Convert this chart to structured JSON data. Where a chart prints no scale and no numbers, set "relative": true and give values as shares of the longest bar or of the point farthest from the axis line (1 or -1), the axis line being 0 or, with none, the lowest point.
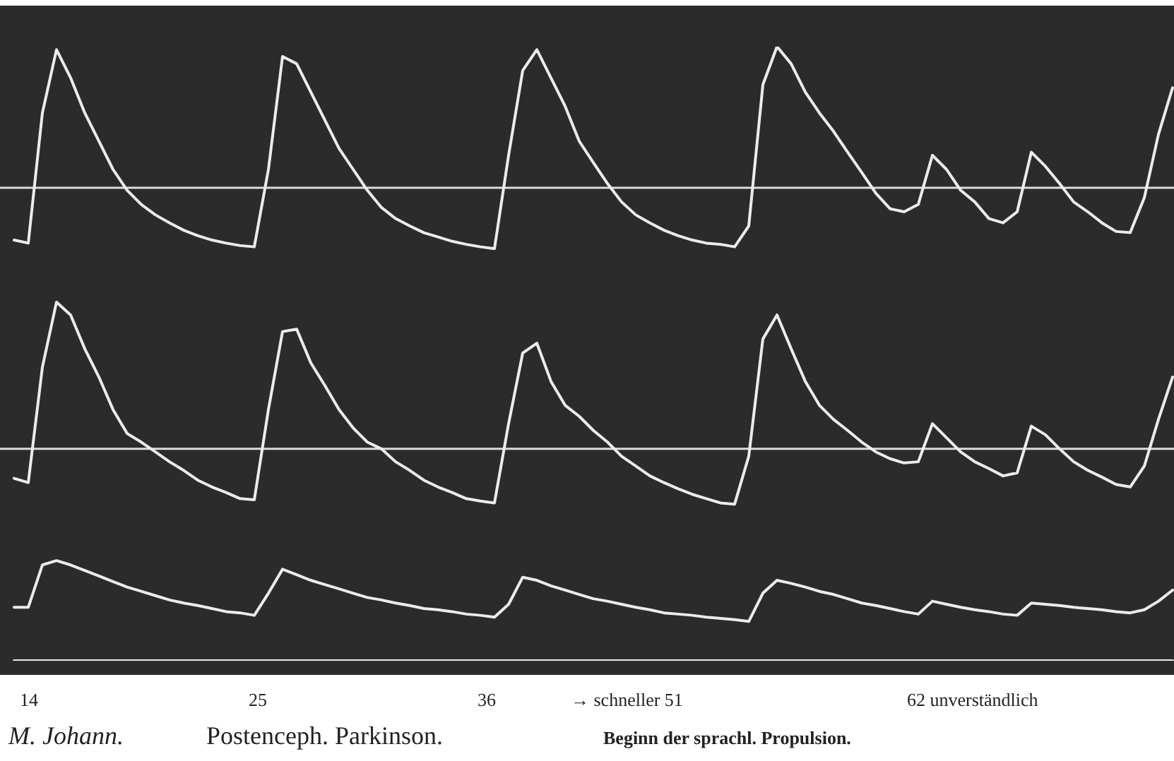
{
  "chart_data": {
    "type": "line",
    "relative": true,
    "marker": "none",
    "line_style": "solid",
    "categories": [
      null,
      null,
      null,
      null,
      null,
      null,
      null,
      null,
      null,
      null,
      null,
      null,
      null,
      null,
      null,
      null,
      null,
      null,
      null,
      null,
      null,
      null,
      null,
      null,
      null,
      null,
      null,
      null,
      null,
      null,
      null,
      null,
      null,
      null,
      null,
      null,
      null,
      null,
      null,
      null,
      null,
      null,
      null,
      null,
      null,
      null,
      null,
      null,
      null,
      null,
      null,
      null,
      null,
      null,
      null,
      null,
      null,
      null,
      null,
      null,
      null,
      null,
      null,
      null,
      null,
      null,
      null,
      null,
      null,
      null,
      null,
      null,
      null,
      null,
      null,
      null,
      null,
      null,
      null,
      null,
      null,
      null,
      null
    ],
    "series": [
      {
        "color": "#ececec",
        "values": [
          0.685,
          0.68,
          0.892,
          0.995,
          0.949,
          0.892,
          0.846,
          0.8,
          0.766,
          0.743,
          0.726,
          0.713,
          0.701,
          0.692,
          0.685,
          0.68,
          0.676,
          0.674,
          0.8,
          0.984,
          0.972,
          0.926,
          0.88,
          0.834,
          0.8,
          0.766,
          0.738,
          0.72,
          0.708,
          0.697,
          0.69,
          0.683,
          0.678,
          0.674,
          0.671,
          0.823,
          0.961,
          0.995,
          0.949,
          0.903,
          0.846,
          0.811,
          0.777,
          0.747,
          0.726,
          0.713,
          0.701,
          0.692,
          0.685,
          0.68,
          0.678,
          0.674,
          0.708,
          0.938,
          1.0,
          0.972,
          0.926,
          0.892,
          0.862,
          0.828,
          0.795,
          0.761,
          0.736,
          0.731,
          0.743,
          0.823,
          0.8,
          0.766,
          0.747,
          0.72,
          0.713,
          0.731,
          0.828,
          0.805,
          0.777,
          0.747,
          0.731,
          0.713,
          0.699,
          0.697,
          0.754,
          0.857,
          0.933
        ]
      },
      {
        "color": "#ececec",
        "values": [
          0.297,
          0.29,
          0.478,
          0.584,
          0.563,
          0.508,
          0.462,
          0.409,
          0.37,
          0.356,
          0.34,
          0.324,
          0.31,
          0.294,
          0.283,
          0.274,
          0.264,
          0.262,
          0.409,
          0.536,
          0.54,
          0.485,
          0.448,
          0.409,
          0.379,
          0.356,
          0.345,
          0.324,
          0.31,
          0.294,
          0.283,
          0.274,
          0.264,
          0.26,
          0.257,
          0.386,
          0.501,
          0.517,
          0.455,
          0.416,
          0.398,
          0.375,
          0.356,
          0.333,
          0.317,
          0.301,
          0.29,
          0.28,
          0.271,
          0.264,
          0.257,
          0.255,
          0.333,
          0.524,
          0.563,
          0.508,
          0.455,
          0.416,
          0.393,
          0.375,
          0.356,
          0.34,
          0.329,
          0.322,
          0.324,
          0.386,
          0.363,
          0.34,
          0.324,
          0.313,
          0.301,
          0.306,
          0.382,
          0.368,
          0.345,
          0.324,
          0.31,
          0.299,
          0.287,
          0.283,
          0.317,
          0.393,
          0.462
        ]
      },
      {
        "color": "#ececec",
        "values": [
          0.087,
          0.087,
          0.156,
          0.163,
          0.156,
          0.147,
          0.138,
          0.129,
          0.12,
          0.113,
          0.106,
          0.099,
          0.094,
          0.09,
          0.085,
          0.08,
          0.078,
          0.074,
          0.11,
          0.149,
          0.14,
          0.131,
          0.124,
          0.117,
          0.11,
          0.103,
          0.099,
          0.094,
          0.09,
          0.085,
          0.083,
          0.08,
          0.076,
          0.074,
          0.071,
          0.092,
          0.136,
          0.131,
          0.122,
          0.115,
          0.108,
          0.101,
          0.097,
          0.092,
          0.087,
          0.083,
          0.078,
          0.076,
          0.074,
          0.071,
          0.069,
          0.067,
          0.064,
          0.11,
          0.131,
          0.126,
          0.12,
          0.113,
          0.108,
          0.101,
          0.094,
          0.09,
          0.085,
          0.08,
          0.076,
          0.097,
          0.092,
          0.087,
          0.083,
          0.08,
          0.076,
          0.074,
          0.094,
          0.092,
          0.09,
          0.087,
          0.085,
          0.083,
          0.08,
          0.078,
          0.083,
          0.097,
          0.115
        ]
      },
      {
        "color": "#ececec",
        "values": [
          0,
          0,
          0,
          0,
          0,
          0,
          0,
          0,
          0,
          0,
          0,
          0,
          0,
          0,
          0,
          0,
          0,
          0,
          0,
          0,
          0,
          0,
          0,
          0,
          0,
          0,
          0,
          0,
          0,
          0,
          0,
          0,
          0,
          0,
          0,
          0,
          0,
          0,
          0,
          0,
          0,
          0,
          0,
          0,
          0,
          0,
          0,
          0,
          0,
          0,
          0,
          0,
          0,
          0,
          0,
          0,
          0,
          0,
          0,
          0,
          0,
          0,
          0,
          0,
          0,
          0,
          0,
          0,
          0,
          0,
          0,
          0,
          0,
          0,
          0,
          0,
          0,
          0,
          0,
          0,
          0,
          0,
          0
        ]
      }
    ],
    "ref_lines": [
      {
        "axis": "y",
        "value": 0.77,
        "color": "#dcdcdc"
      },
      {
        "axis": "y",
        "value": 0.345,
        "color": "#dcdcdc"
      }
    ],
    "annotations": [
      "14",
      "25",
      "36",
      "→ schneller 51",
      "62 unverständlich",
      "M. Johann.",
      "Postenceph. Parkinson.",
      "Beginn der sprachl. Propulsion."
    ]
  }
}
